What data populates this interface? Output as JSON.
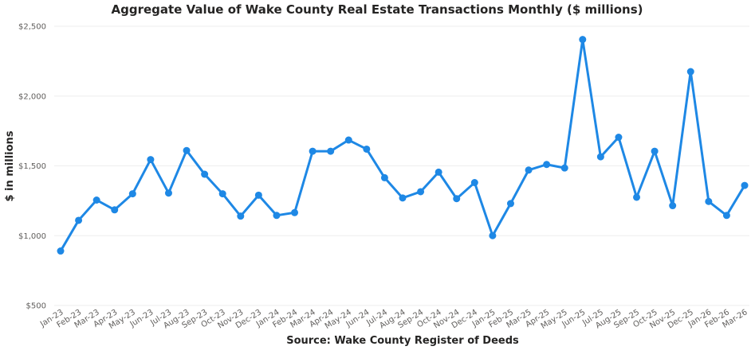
{
  "chart_data": {
    "type": "line",
    "title": "Aggregate Value of Wake County Real Estate Transactions Monthly ($ millions)",
    "xlabel": "Source: Wake County Register of Deeds",
    "ylabel": "$ in millions",
    "ylim": [
      500,
      2500
    ],
    "yticks": [
      500,
      1000,
      1500,
      2000,
      2500
    ],
    "ytick_labels": [
      "$500",
      "$1,000",
      "$1,500",
      "$2,000",
      "$2,500"
    ],
    "grid": true,
    "legend": "none",
    "color": "#1e88e5",
    "categories": [
      "Jan-23",
      "Feb-23",
      "Mar-23",
      "Apr-23",
      "May-23",
      "Jun-23",
      "Jul-23",
      "Aug-23",
      "Sep-23",
      "Oct-23",
      "Nov-23",
      "Dec-23",
      "Jan-24",
      "Feb-24",
      "Mar-24",
      "Apr-24",
      "May-24",
      "Jun-24",
      "Jul-24",
      "Aug-24",
      "Sep-24",
      "Oct-24",
      "Nov-24",
      "Dec-24",
      "Jan-25",
      "Feb-25",
      "Mar-25",
      "Apr-25",
      "May-25",
      "Jun-25",
      "Jul-25",
      "Aug-25",
      "Sep-25",
      "Oct-25",
      "Nov-25",
      "Dec-25",
      "Jan-26",
      "Feb-26",
      "Mar-26"
    ],
    "series": [
      {
        "values": [
          890,
          1110,
          1255,
          1185,
          1300,
          1545,
          1305,
          1610,
          1440,
          1300,
          1140,
          1290,
          1145,
          1165,
          1605,
          1605,
          1685,
          1620,
          1415,
          1270,
          1315,
          1455,
          1265,
          1380,
          1000,
          1230,
          1470,
          1510,
          1485,
          2405,
          1565,
          1705,
          1275,
          1605,
          1215,
          2175,
          1245,
          1145,
          1360
        ]
      }
    ]
  }
}
